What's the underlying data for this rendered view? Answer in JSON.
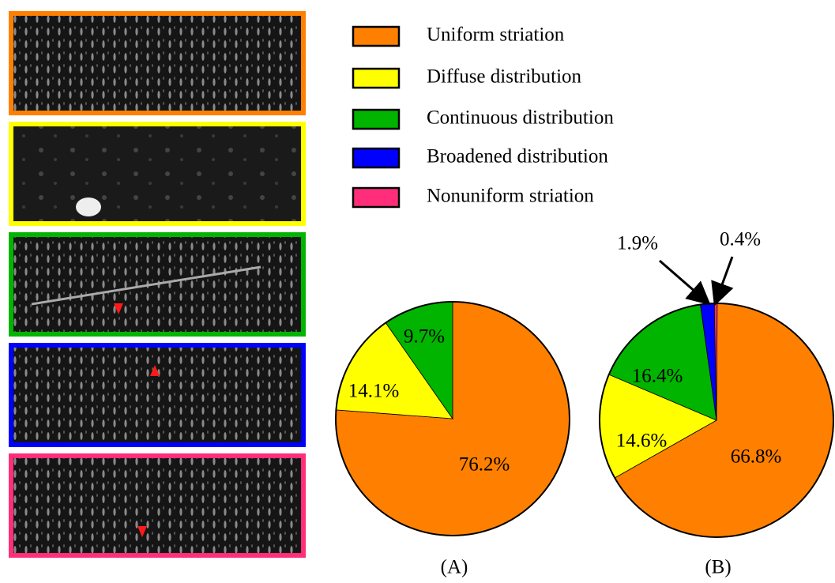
{
  "chart_data": {
    "type": "pie",
    "categories": [
      "Uniform striation",
      "Diffuse distribution",
      "Continuous distribution",
      "Broadened distribution",
      "Nonuniform striation"
    ],
    "colors": [
      "#ff8000",
      "#ffff00",
      "#00b400",
      "#0000ff",
      "#ff2d7a"
    ],
    "series": [
      {
        "name": "(A)",
        "values": [
          76.2,
          14.1,
          9.7,
          null,
          null
        ],
        "value_labels": [
          "76.2%",
          "14.1%",
          "9.7%",
          null,
          null
        ]
      },
      {
        "name": "(B)",
        "values": [
          66.8,
          14.6,
          16.4,
          1.9,
          0.4
        ],
        "value_labels": [
          "66.8%",
          "14.6%",
          "16.4%",
          "1.9%",
          "0.4%"
        ]
      }
    ]
  }
}
